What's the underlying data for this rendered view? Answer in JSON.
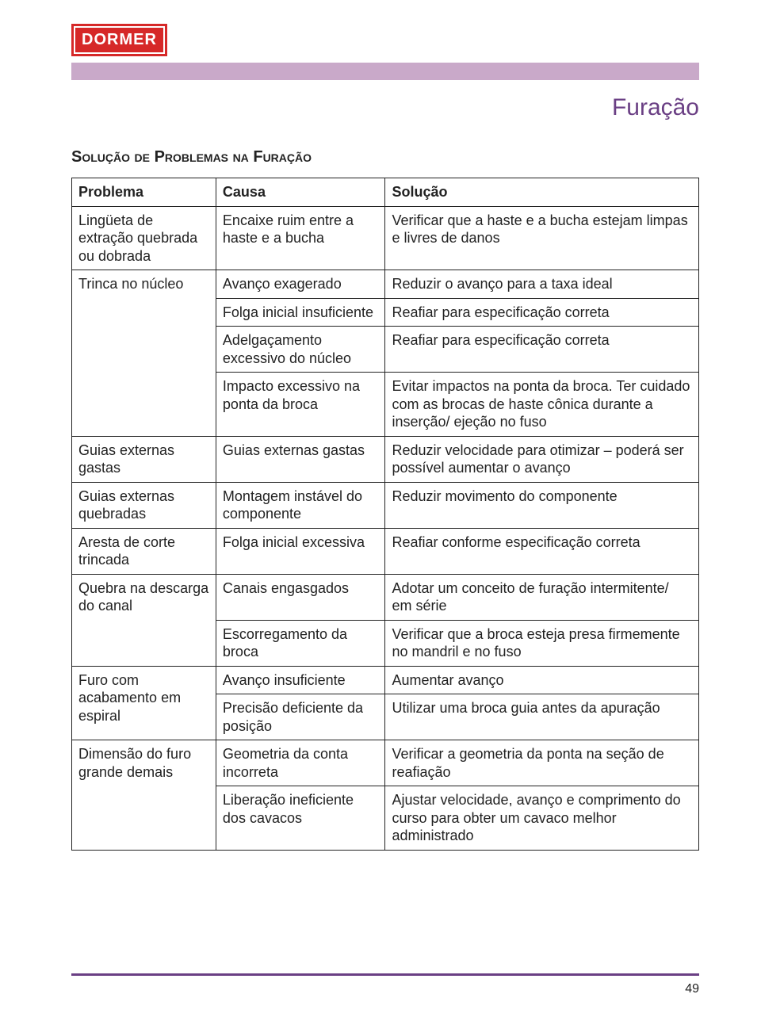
{
  "brand": {
    "logo_text": "DORMER"
  },
  "colors": {
    "logo_bg": "#d62828",
    "logo_text": "#ffffff",
    "band": "#c9a9c9",
    "accent": "#6a3f84",
    "border": "#222222",
    "text": "#222222",
    "page_bg": "#ffffff"
  },
  "typography": {
    "title_fontsize": 30,
    "section_fontsize": 20,
    "table_fontsize": 18,
    "pagenum_fontsize": 16
  },
  "header": {
    "page_title": "Furação",
    "section_title": "Solução de Problemas na Furação"
  },
  "table": {
    "columns": [
      "Problema",
      "Causa",
      "Solução"
    ],
    "col_widths_pct": [
      23,
      27,
      50
    ],
    "rows": [
      {
        "problema": "Lingüeta de extração quebrada ou dobrada",
        "causa": "Encaixe ruim entre a haste e a bucha",
        "solucao": "Verificar que a haste e a bucha estejam limpas e livres de danos"
      },
      {
        "problema": "Trinca no núcleo",
        "causa": "Avanço exagerado",
        "solucao": "Reduzir o avanço para a taxa ideal"
      },
      {
        "problema": "",
        "causa": "Folga inicial insuficiente",
        "solucao": "Reafiar para especificação correta"
      },
      {
        "problema": "",
        "causa": "Adelgaçamento excessivo do núcleo",
        "solucao": "Reafiar para especificação correta"
      },
      {
        "problema": "",
        "causa": "Impacto excessivo na ponta da broca",
        "solucao": "Evitar impactos na ponta da broca. Ter cuidado com as brocas de haste cônica durante a inserção/ ejeção no fuso"
      },
      {
        "problema": "Guias externas gastas",
        "causa": "Guias externas gastas",
        "solucao": "Reduzir velocidade para otimizar – poderá ser possível aumentar o avanço"
      },
      {
        "problema": "Guias externas quebradas",
        "causa": "Montagem instável do componente",
        "solucao": "Reduzir movimento do componente"
      },
      {
        "problema": "Aresta de corte trincada",
        "causa": "Folga inicial excessiva",
        "solucao": "Reafiar conforme especificação correta"
      },
      {
        "problema": "Quebra na descarga do canal",
        "causa": "Canais engasgados",
        "solucao": "Adotar um conceito de furação intermitente/ em série"
      },
      {
        "problema": "",
        "causa": "Escorregamento da broca",
        "solucao": "Verificar que a broca esteja presa firmemente no mandril e no fuso"
      },
      {
        "problema": "Furo com acabamento em espiral",
        "causa": "Avanço insuficiente",
        "solucao": "Aumentar avanço"
      },
      {
        "problema": "",
        "causa": "Precisão deficiente da posição",
        "solucao": "Utilizar uma broca guia antes da apuração"
      },
      {
        "problema": "Dimensão do furo grande demais",
        "causa": "Geometria da conta incorreta",
        "solucao": "Verificar a geometria da ponta na seção de reafiação"
      },
      {
        "problema": "",
        "causa": "Liberação ineficiente dos cavacos",
        "solucao": "Ajustar velocidade, avanço e comprimento do curso para obter um cavaco melhor administrado"
      }
    ],
    "merged_problem_groups": [
      [
        1,
        2,
        3,
        4
      ],
      [
        8,
        9
      ],
      [
        10,
        11
      ],
      [
        12,
        13
      ]
    ]
  },
  "footer": {
    "page_number": "49"
  }
}
